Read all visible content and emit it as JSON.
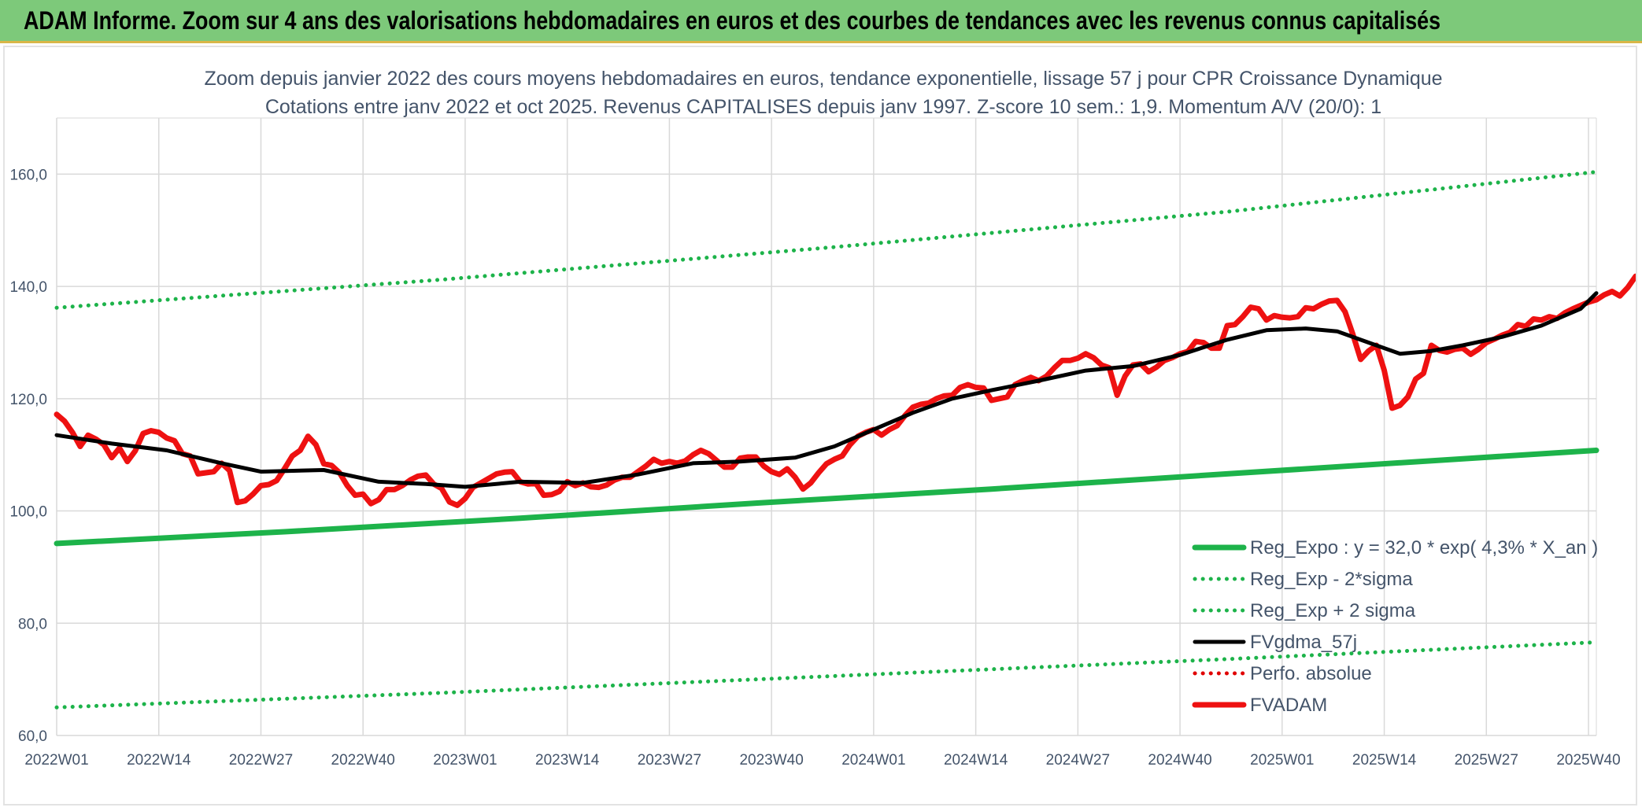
{
  "banner": {
    "title": "ADAM Informe. Zoom sur 4 ans des valorisations hebdomadaires en euros et des courbes de tendances avec les revenus connus capitalisés"
  },
  "chart_data": {
    "type": "line",
    "title": "Zoom depuis janvier 2022 des cours moyens hebdomadaires en euros, tendance exponentielle, lissage 57 j pour CPR Croissance Dynamique",
    "subtitle": "Cotations entre janv 2022 et oct 2025. Revenus CAPITALISES depuis janv 1997. Z-score 10 sem.: 1,9. Momentum A/V (20/0): 1",
    "xlabel": "",
    "ylabel": "",
    "ylim": [
      60,
      170
    ],
    "y_ticks": [
      "60,0",
      "80,0",
      "100,0",
      "120,0",
      "140,0",
      "160,0"
    ],
    "y_tick_values": [
      60,
      80,
      100,
      120,
      140,
      160
    ],
    "x_range": [
      1,
      197
    ],
    "x_ticks": [
      "2022W01",
      "2022W14",
      "2022W27",
      "2022W40",
      "2023W01",
      "2023W14",
      "2023W27",
      "2023W40",
      "2024W01",
      "2024W14",
      "2024W27",
      "2024W40",
      "2025W01",
      "2025W14",
      "2025W27",
      "2025W40"
    ],
    "x_tick_weeks": [
      1,
      14,
      27,
      40,
      53,
      66,
      79,
      92,
      105,
      118,
      131,
      144,
      157,
      170,
      183,
      196
    ],
    "grid": "horizontal and vertical",
    "legend_position": "bottom-right",
    "colors": {
      "reg_expo": "#1db34a",
      "band": "#1db34a",
      "ma57": "#000000",
      "perfo": "#e00000",
      "fvadam": "#ee1111",
      "grid": "#d9d9d9",
      "text": "#44546a"
    },
    "series": [
      {
        "name": "Reg_Expo : y = 32,0 * exp( 4,3% *  X_an )",
        "style": "solid-thick",
        "color": "#1db34a",
        "points": [
          [
            1,
            94.2
          ],
          [
            30,
            96.3
          ],
          [
            60,
            98.7
          ],
          [
            90,
            101.4
          ],
          [
            120,
            103.9
          ],
          [
            150,
            106.6
          ],
          [
            180,
            109.3
          ],
          [
            197,
            110.8
          ]
        ]
      },
      {
        "name": "Reg_Exp - 2*sigma",
        "style": "dotted",
        "color": "#1db34a",
        "points": [
          [
            1,
            65.0
          ],
          [
            50,
            67.6
          ],
          [
            100,
            70.6
          ],
          [
            150,
            73.6
          ],
          [
            197,
            76.6
          ]
        ]
      },
      {
        "name": "Reg_Exp + 2 sigma",
        "style": "dotted",
        "color": "#1db34a",
        "points": [
          [
            1,
            136.2
          ],
          [
            50,
            141.2
          ],
          [
            100,
            147.0
          ],
          [
            150,
            153.3
          ],
          [
            197,
            160.4
          ]
        ]
      },
      {
        "name": "FVgdma_57j",
        "style": "solid",
        "color": "#000000",
        "points": [
          [
            1,
            113.5
          ],
          [
            8,
            112.0
          ],
          [
            15,
            110.8
          ],
          [
            22,
            108.5
          ],
          [
            27,
            107.0
          ],
          [
            35,
            107.3
          ],
          [
            42,
            105.2
          ],
          [
            48,
            104.8
          ],
          [
            53,
            104.3
          ],
          [
            60,
            105.2
          ],
          [
            68,
            105.0
          ],
          [
            75,
            106.5
          ],
          [
            82,
            108.5
          ],
          [
            88,
            108.8
          ],
          [
            95,
            109.5
          ],
          [
            100,
            111.5
          ],
          [
            105,
            114.5
          ],
          [
            110,
            117.5
          ],
          [
            115,
            120.0
          ],
          [
            120,
            121.5
          ],
          [
            126,
            123.2
          ],
          [
            132,
            125.0
          ],
          [
            138,
            125.8
          ],
          [
            144,
            127.8
          ],
          [
            150,
            130.5
          ],
          [
            155,
            132.2
          ],
          [
            160,
            132.5
          ],
          [
            164,
            132.0
          ],
          [
            168,
            130.0
          ],
          [
            172,
            128.0
          ],
          [
            176,
            128.5
          ],
          [
            180,
            129.5
          ],
          [
            185,
            131.0
          ],
          [
            190,
            133.0
          ],
          [
            195,
            136.0
          ],
          [
            197,
            138.8
          ]
        ]
      },
      {
        "name": "Perfo. absolue",
        "style": "dotted",
        "color": "#e00000",
        "points": []
      },
      {
        "name": "FVADAM",
        "style": "solid-thick",
        "color": "#ee1111",
        "points": [
          [
            1,
            117.2
          ],
          [
            2,
            116.0
          ],
          [
            3,
            114.0
          ],
          [
            4,
            111.5
          ],
          [
            5,
            113.5
          ],
          [
            6,
            112.8
          ],
          [
            7,
            111.8
          ],
          [
            8,
            109.5
          ],
          [
            9,
            111.2
          ],
          [
            10,
            108.8
          ],
          [
            11,
            110.7
          ],
          [
            12,
            113.8
          ],
          [
            13,
            114.3
          ],
          [
            14,
            114.0
          ],
          [
            15,
            113.0
          ],
          [
            16,
            112.5
          ],
          [
            17,
            110.2
          ],
          [
            18,
            109.8
          ],
          [
            19,
            106.6
          ],
          [
            20,
            106.8
          ],
          [
            21,
            107.0
          ],
          [
            22,
            108.5
          ],
          [
            23,
            107.2
          ],
          [
            24,
            101.5
          ],
          [
            25,
            101.8
          ],
          [
            26,
            103.0
          ],
          [
            27,
            104.5
          ],
          [
            28,
            104.7
          ],
          [
            29,
            105.4
          ],
          [
            30,
            107.5
          ],
          [
            31,
            109.8
          ],
          [
            32,
            110.8
          ],
          [
            33,
            113.3
          ],
          [
            34,
            111.8
          ],
          [
            35,
            108.4
          ],
          [
            36,
            108.1
          ],
          [
            37,
            106.8
          ],
          [
            38,
            104.5
          ],
          [
            39,
            102.8
          ],
          [
            40,
            103.0
          ],
          [
            41,
            101.3
          ],
          [
            42,
            102.0
          ],
          [
            43,
            103.8
          ],
          [
            44,
            103.8
          ],
          [
            45,
            104.5
          ],
          [
            46,
            105.5
          ],
          [
            47,
            106.2
          ],
          [
            48,
            106.4
          ],
          [
            49,
            104.8
          ],
          [
            50,
            104.0
          ],
          [
            51,
            101.6
          ],
          [
            52,
            101.0
          ],
          [
            53,
            102.2
          ],
          [
            54,
            104.2
          ],
          [
            55,
            105.0
          ],
          [
            56,
            105.8
          ],
          [
            57,
            106.6
          ],
          [
            58,
            106.9
          ],
          [
            59,
            107.0
          ],
          [
            60,
            105.2
          ],
          [
            61,
            104.8
          ],
          [
            62,
            104.9
          ],
          [
            63,
            102.8
          ],
          [
            64,
            102.9
          ],
          [
            65,
            103.5
          ],
          [
            66,
            105.2
          ],
          [
            67,
            104.5
          ],
          [
            68,
            105.0
          ],
          [
            69,
            104.3
          ],
          [
            70,
            104.2
          ],
          [
            71,
            104.6
          ],
          [
            72,
            105.5
          ],
          [
            73,
            106.0
          ],
          [
            74,
            106.0
          ],
          [
            75,
            107.0
          ],
          [
            76,
            108.0
          ],
          [
            77,
            109.2
          ],
          [
            78,
            108.5
          ],
          [
            79,
            108.8
          ],
          [
            80,
            108.5
          ],
          [
            81,
            108.9
          ],
          [
            82,
            110.0
          ],
          [
            83,
            110.8
          ],
          [
            84,
            110.2
          ],
          [
            85,
            109.0
          ],
          [
            86,
            107.8
          ],
          [
            87,
            107.8
          ],
          [
            88,
            109.4
          ],
          [
            89,
            109.6
          ],
          [
            90,
            109.6
          ],
          [
            91,
            108.0
          ],
          [
            92,
            107.0
          ],
          [
            93,
            106.5
          ],
          [
            94,
            107.5
          ],
          [
            95,
            106.0
          ],
          [
            96,
            103.9
          ],
          [
            97,
            105.0
          ],
          [
            98,
            106.8
          ],
          [
            99,
            108.4
          ],
          [
            100,
            109.2
          ],
          [
            101,
            109.8
          ],
          [
            102,
            111.8
          ],
          [
            103,
            113.3
          ],
          [
            104,
            114.0
          ],
          [
            105,
            114.5
          ],
          [
            106,
            113.5
          ],
          [
            107,
            114.5
          ],
          [
            108,
            115.2
          ],
          [
            109,
            117.0
          ],
          [
            110,
            118.5
          ],
          [
            111,
            119.0
          ],
          [
            112,
            119.2
          ],
          [
            113,
            120.0
          ],
          [
            114,
            120.5
          ],
          [
            115,
            120.6
          ],
          [
            116,
            122.0
          ],
          [
            117,
            122.5
          ],
          [
            118,
            122.0
          ],
          [
            119,
            121.9
          ],
          [
            120,
            119.7
          ],
          [
            121,
            120.0
          ],
          [
            122,
            120.3
          ],
          [
            123,
            122.5
          ],
          [
            124,
            123.2
          ],
          [
            125,
            123.8
          ],
          [
            126,
            123.2
          ],
          [
            127,
            124.0
          ],
          [
            128,
            125.5
          ],
          [
            129,
            126.8
          ],
          [
            130,
            126.8
          ],
          [
            131,
            127.2
          ],
          [
            132,
            128.0
          ],
          [
            133,
            127.3
          ],
          [
            134,
            126.0
          ],
          [
            135,
            125.5
          ],
          [
            136,
            120.6
          ],
          [
            137,
            124.0
          ],
          [
            138,
            126.0
          ],
          [
            139,
            126.2
          ],
          [
            140,
            124.8
          ],
          [
            141,
            125.6
          ],
          [
            142,
            126.8
          ],
          [
            143,
            127.3
          ],
          [
            144,
            128.0
          ],
          [
            145,
            128.4
          ],
          [
            146,
            130.2
          ],
          [
            147,
            130.0
          ],
          [
            148,
            129.0
          ],
          [
            149,
            129.0
          ],
          [
            150,
            133.0
          ],
          [
            151,
            133.2
          ],
          [
            152,
            134.6
          ],
          [
            153,
            136.3
          ],
          [
            154,
            136.0
          ],
          [
            155,
            134.0
          ],
          [
            156,
            134.8
          ],
          [
            157,
            134.5
          ],
          [
            158,
            134.4
          ],
          [
            159,
            134.6
          ],
          [
            160,
            136.2
          ],
          [
            161,
            136.0
          ],
          [
            162,
            136.8
          ],
          [
            163,
            137.4
          ],
          [
            164,
            137.5
          ],
          [
            165,
            135.5
          ],
          [
            166,
            131.5
          ],
          [
            167,
            127.0
          ],
          [
            168,
            128.5
          ],
          [
            169,
            129.5
          ],
          [
            170,
            125.0
          ],
          [
            171,
            118.3
          ],
          [
            172,
            118.8
          ],
          [
            173,
            120.3
          ],
          [
            174,
            123.5
          ],
          [
            175,
            124.5
          ],
          [
            176,
            129.5
          ],
          [
            177,
            128.6
          ],
          [
            178,
            128.3
          ],
          [
            179,
            128.8
          ],
          [
            180,
            129.0
          ],
          [
            181,
            127.9
          ],
          [
            182,
            128.8
          ],
          [
            183,
            130.0
          ],
          [
            184,
            130.6
          ],
          [
            185,
            131.3
          ],
          [
            186,
            131.8
          ],
          [
            187,
            133.2
          ],
          [
            188,
            132.9
          ],
          [
            189,
            134.2
          ],
          [
            190,
            134.0
          ],
          [
            191,
            134.6
          ],
          [
            192,
            134.3
          ],
          [
            193,
            135.3
          ],
          [
            194,
            136.0
          ],
          [
            195,
            136.6
          ],
          [
            196,
            137.2
          ],
          [
            197,
            137.6
          ],
          [
            198,
            138.5
          ],
          [
            199,
            139.1
          ],
          [
            200,
            138.3
          ],
          [
            201,
            139.8
          ],
          [
            202,
            141.8
          ]
        ]
      }
    ]
  }
}
